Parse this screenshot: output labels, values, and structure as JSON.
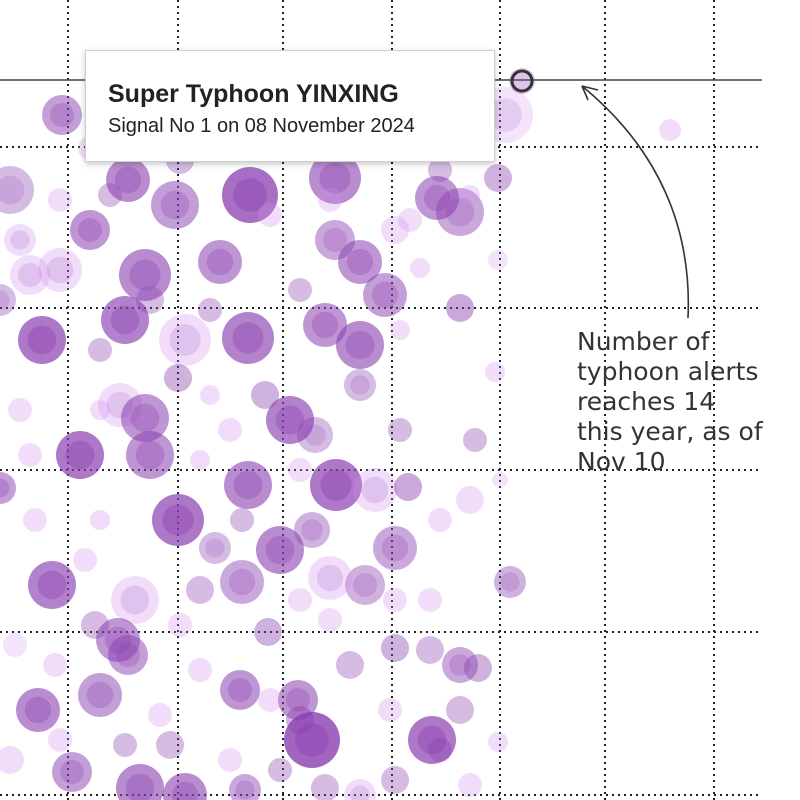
{
  "chart_data": {
    "type": "scatter",
    "title": "",
    "xlabel": "",
    "ylabel": "",
    "grid": true,
    "colors": {
      "bubble": "#8a3fb0",
      "bubble_light": "#cf8ef0",
      "reference_line": "#444444",
      "highlight": "#333333"
    },
    "reference_level": 14,
    "points": [
      [
        62,
        115,
        20,
        0.5
      ],
      [
        90,
        148,
        12,
        0.3
      ],
      [
        128,
        180,
        22,
        0.6
      ],
      [
        175,
        205,
        24,
        0.5
      ],
      [
        250,
        195,
        28,
        0.75
      ],
      [
        335,
        178,
        26,
        0.6
      ],
      [
        437,
        198,
        22,
        0.55
      ],
      [
        460,
        212,
        24,
        0.45
      ],
      [
        498,
        178,
        14,
        0.4
      ],
      [
        505,
        115,
        28,
        0.25
      ],
      [
        670,
        130,
        11,
        0.3
      ],
      [
        10,
        190,
        24,
        0.35
      ],
      [
        20,
        240,
        16,
        0.3
      ],
      [
        90,
        230,
        20,
        0.55
      ],
      [
        145,
        275,
        26,
        0.6
      ],
      [
        220,
        262,
        22,
        0.55
      ],
      [
        30,
        275,
        20,
        0.3
      ],
      [
        60,
        270,
        22,
        0.3
      ],
      [
        0,
        300,
        16,
        0.35
      ],
      [
        335,
        240,
        20,
        0.45
      ],
      [
        360,
        262,
        22,
        0.55
      ],
      [
        395,
        230,
        14,
        0.3
      ],
      [
        385,
        295,
        22,
        0.5
      ],
      [
        498,
        260,
        10,
        0.25
      ],
      [
        42,
        340,
        24,
        0.7
      ],
      [
        125,
        320,
        24,
        0.65
      ],
      [
        185,
        340,
        26,
        0.3
      ],
      [
        248,
        338,
        26,
        0.65
      ],
      [
        325,
        325,
        22,
        0.55
      ],
      [
        360,
        345,
        24,
        0.6
      ],
      [
        460,
        308,
        14,
        0.45
      ],
      [
        495,
        372,
        10,
        0.3
      ],
      [
        178,
        378,
        14,
        0.4
      ],
      [
        120,
        405,
        22,
        0.3
      ],
      [
        145,
        418,
        24,
        0.55
      ],
      [
        290,
        420,
        24,
        0.65
      ],
      [
        315,
        435,
        18,
        0.35
      ],
      [
        360,
        385,
        16,
        0.35
      ],
      [
        80,
        455,
        24,
        0.7
      ],
      [
        30,
        455,
        12,
        0.3
      ],
      [
        150,
        455,
        24,
        0.55
      ],
      [
        248,
        485,
        24,
        0.6
      ],
      [
        336,
        485,
        26,
        0.7
      ],
      [
        375,
        490,
        22,
        0.3
      ],
      [
        408,
        487,
        14,
        0.45
      ],
      [
        0,
        488,
        16,
        0.5
      ],
      [
        178,
        520,
        26,
        0.7
      ],
      [
        215,
        548,
        16,
        0.35
      ],
      [
        242,
        520,
        12,
        0.35
      ],
      [
        280,
        550,
        24,
        0.6
      ],
      [
        312,
        530,
        18,
        0.4
      ],
      [
        395,
        548,
        22,
        0.45
      ],
      [
        470,
        500,
        14,
        0.3
      ],
      [
        500,
        480,
        8,
        0.25
      ],
      [
        52,
        585,
        24,
        0.65
      ],
      [
        135,
        600,
        24,
        0.3
      ],
      [
        242,
        582,
        22,
        0.45
      ],
      [
        365,
        585,
        20,
        0.4
      ],
      [
        330,
        578,
        22,
        0.3
      ],
      [
        510,
        582,
        16,
        0.4
      ],
      [
        118,
        640,
        22,
        0.55
      ],
      [
        128,
        655,
        20,
        0.5
      ],
      [
        268,
        632,
        14,
        0.4
      ],
      [
        395,
        648,
        14,
        0.4
      ],
      [
        430,
        650,
        14,
        0.35
      ],
      [
        460,
        665,
        18,
        0.45
      ],
      [
        478,
        668,
        14,
        0.4
      ],
      [
        100,
        695,
        22,
        0.5
      ],
      [
        240,
        690,
        20,
        0.55
      ],
      [
        38,
        710,
        22,
        0.6
      ],
      [
        298,
        700,
        20,
        0.55
      ],
      [
        312,
        740,
        28,
        0.8
      ],
      [
        432,
        740,
        24,
        0.7
      ],
      [
        125,
        745,
        12,
        0.35
      ],
      [
        170,
        745,
        14,
        0.35
      ],
      [
        300,
        720,
        14,
        0.4
      ],
      [
        460,
        710,
        14,
        0.35
      ],
      [
        72,
        772,
        20,
        0.5
      ],
      [
        140,
        788,
        24,
        0.6
      ],
      [
        185,
        795,
        22,
        0.6
      ],
      [
        245,
        790,
        16,
        0.45
      ],
      [
        325,
        788,
        14,
        0.35
      ],
      [
        360,
        795,
        16,
        0.3
      ],
      [
        395,
        780,
        14,
        0.35
      ],
      [
        10,
        760,
        14,
        0.3
      ],
      [
        498,
        742,
        10,
        0.3
      ],
      [
        15,
        645,
        12,
        0.25
      ],
      [
        95,
        625,
        14,
        0.35
      ],
      [
        330,
        620,
        12,
        0.3
      ],
      [
        270,
        700,
        12,
        0.3
      ],
      [
        440,
        750,
        12,
        0.35
      ],
      [
        470,
        195,
        10,
        0.3
      ],
      [
        110,
        195,
        12,
        0.35
      ],
      [
        270,
        215,
        12,
        0.3
      ],
      [
        410,
        220,
        12,
        0.3
      ],
      [
        420,
        268,
        10,
        0.3
      ],
      [
        300,
        290,
        12,
        0.35
      ],
      [
        210,
        310,
        12,
        0.35
      ],
      [
        100,
        350,
        12,
        0.35
      ],
      [
        400,
        330,
        10,
        0.3
      ],
      [
        265,
        395,
        14,
        0.4
      ],
      [
        210,
        395,
        10,
        0.3
      ],
      [
        100,
        410,
        10,
        0.3
      ],
      [
        20,
        410,
        12,
        0.3
      ],
      [
        230,
        430,
        12,
        0.3
      ],
      [
        400,
        430,
        12,
        0.35
      ],
      [
        475,
        440,
        12,
        0.35
      ],
      [
        200,
        460,
        10,
        0.3
      ],
      [
        35,
        520,
        12,
        0.3
      ],
      [
        100,
        520,
        10,
        0.3
      ],
      [
        300,
        470,
        12,
        0.3
      ],
      [
        440,
        520,
        12,
        0.3
      ],
      [
        85,
        560,
        12,
        0.3
      ],
      [
        200,
        590,
        14,
        0.35
      ],
      [
        300,
        600,
        12,
        0.3
      ],
      [
        430,
        600,
        12,
        0.3
      ],
      [
        180,
        625,
        12,
        0.3
      ],
      [
        55,
        665,
        12,
        0.3
      ],
      [
        200,
        670,
        12,
        0.3
      ],
      [
        350,
        665,
        14,
        0.35
      ],
      [
        395,
        600,
        12,
        0.3
      ],
      [
        160,
        715,
        12,
        0.3
      ],
      [
        390,
        710,
        12,
        0.3
      ],
      [
        60,
        740,
        12,
        0.3
      ],
      [
        230,
        760,
        12,
        0.3
      ],
      [
        470,
        785,
        12,
        0.3
      ],
      [
        280,
        770,
        12,
        0.35
      ],
      [
        150,
        300,
        14,
        0.35
      ],
      [
        330,
        200,
        12,
        0.3
      ],
      [
        440,
        170,
        12,
        0.35
      ],
      [
        180,
        160,
        14,
        0.35
      ],
      [
        60,
        200,
        12,
        0.3
      ]
    ]
  },
  "tooltip": {
    "title": "Super Typhoon YINXING",
    "subtitle": "Signal No 1 on 08 November 2024"
  },
  "annotation": {
    "lines": [
      "Number of",
      "typhoon alerts",
      "reaches 14",
      "this year, as of",
      "Nov 10"
    ]
  }
}
